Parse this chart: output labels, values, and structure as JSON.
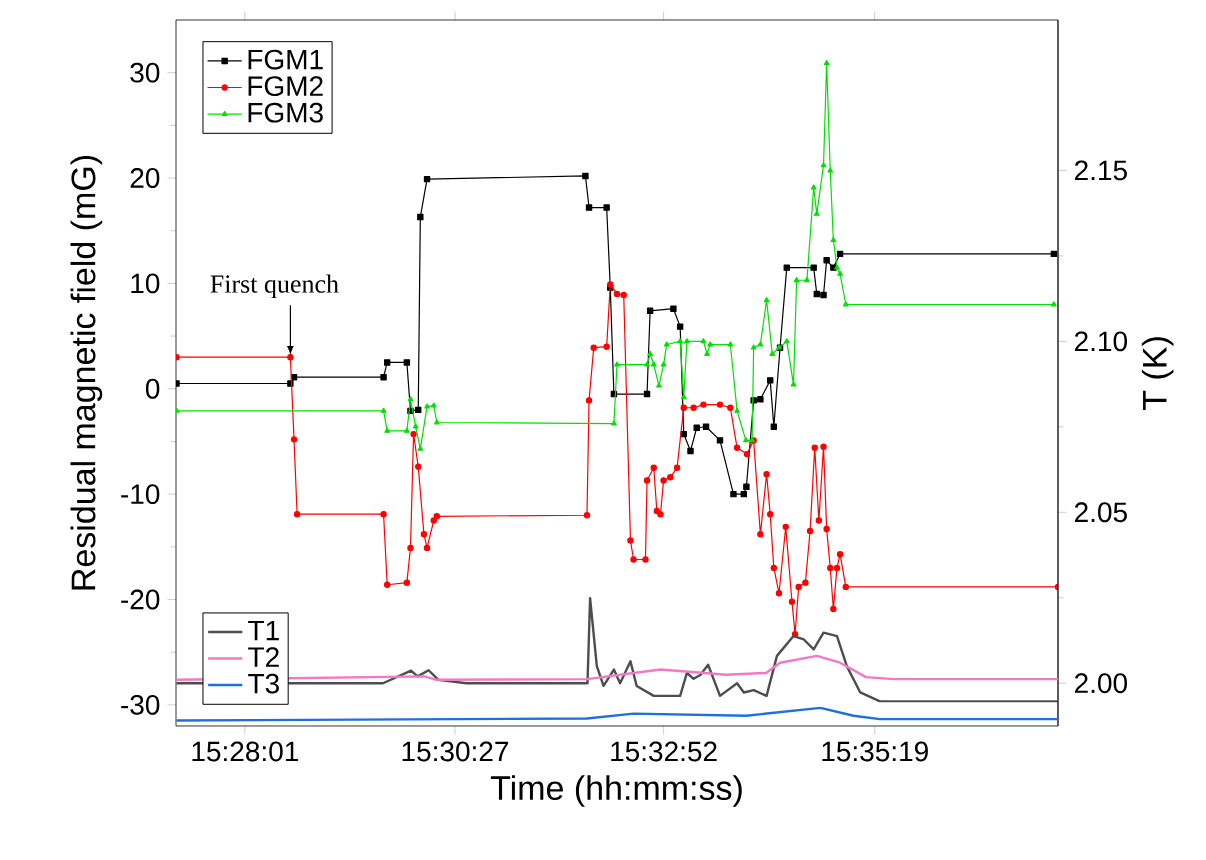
{
  "chart_data": {
    "type": "line",
    "xlabel": "Time (hh:mm:ss)",
    "ylabel": "Residual magnetic field (mG)",
    "y2label": "T (K)",
    "legend": "top left",
    "xlim": [
      15.4536,
      15.624
    ],
    "xticks": [
      {
        "value": 15.4669,
        "label": "15:28:01"
      },
      {
        "value": 15.5075,
        "label": "15:30:27"
      },
      {
        "value": 15.5478,
        "label": "15:32:52"
      },
      {
        "value": 15.5886,
        "label": "15:35:19"
      }
    ],
    "ylim": [
      -32,
      35
    ],
    "yticks": [
      -30,
      -20,
      -10,
      0,
      10,
      20,
      30
    ],
    "y2lim": [
      1.9875,
      2.194
    ],
    "y2ticks": [
      {
        "value": 2.0,
        "label": "2.00"
      },
      {
        "value": 2.05,
        "label": "2.05"
      },
      {
        "value": 2.1,
        "label": "2.10"
      },
      {
        "value": 2.15,
        "label": "2.15"
      }
    ],
    "annotations": [
      {
        "text": "First quench",
        "x": 15.4757,
        "y": 3.0
      }
    ],
    "series": [
      {
        "name": "FGM1",
        "color": "#000000",
        "marker": "square",
        "x": [
          15.4537,
          15.4757,
          15.4764,
          15.4937,
          15.4944,
          15.4982,
          15.4989,
          15.5004,
          15.5008,
          15.5021,
          15.5327,
          15.5334,
          15.5368,
          15.5375,
          15.5382,
          15.5446,
          15.5452,
          15.5497,
          15.551,
          15.5517,
          15.553,
          15.5542,
          15.556,
          15.5587,
          15.5613,
          15.5633,
          15.5638,
          15.5652,
          15.5665,
          15.5684,
          15.5691,
          15.5703,
          15.5716,
          15.5768,
          15.5774,
          15.5787,
          15.5793,
          15.5806,
          15.5819,
          15.6232
        ],
        "values": [
          0.5,
          0.5,
          1.1,
          1.1,
          2.5,
          2.5,
          -2.1,
          -2.0,
          16.3,
          19.9,
          20.2,
          17.2,
          17.2,
          9.6,
          -0.5,
          -0.5,
          7.4,
          7.6,
          5.9,
          -4.3,
          -5.9,
          -3.7,
          -3.6,
          -4.9,
          -10.0,
          -10.0,
          -9.3,
          -1.1,
          -1.0,
          0.8,
          -3.6,
          3.9,
          11.5,
          11.5,
          9.0,
          8.9,
          12.2,
          11.5,
          12.8,
          12.8
        ]
      },
      {
        "name": "FGM2",
        "color": "#ff0000",
        "marker": "circle",
        "x": [
          15.4537,
          15.4757,
          15.4764,
          15.477,
          15.4937,
          15.4944,
          15.4982,
          15.4989,
          15.4995,
          15.5004,
          15.5015,
          15.5021,
          15.5034,
          15.504,
          15.533,
          15.5334,
          15.5343,
          15.5368,
          15.5375,
          15.5388,
          15.5401,
          15.5414,
          15.542,
          15.5443,
          15.5446,
          15.5459,
          15.5465,
          15.5472,
          15.5478,
          15.5491,
          15.5504,
          15.5517,
          15.5536,
          15.5555,
          15.5587,
          15.5607,
          15.562,
          15.5639,
          15.5652,
          15.5665,
          15.5677,
          15.5684,
          15.5691,
          15.5701,
          15.5714,
          15.5726,
          15.5732,
          15.5739,
          15.5752,
          15.5761,
          15.577,
          15.5778,
          15.5787,
          15.5793,
          15.58,
          15.5806,
          15.5813,
          15.5819,
          15.583,
          15.624
        ],
        "values": [
          3.0,
          3.0,
          -4.8,
          -11.9,
          -11.9,
          -18.6,
          -18.4,
          -15.1,
          -4.3,
          -7.4,
          -13.8,
          -15.1,
          -12.5,
          -12.1,
          -12.0,
          -1.1,
          3.9,
          4.0,
          9.9,
          9.0,
          8.9,
          -14.4,
          -16.2,
          -16.2,
          -8.7,
          -7.5,
          -11.6,
          -11.9,
          -8.7,
          -8.4,
          -7.5,
          -1.8,
          -1.8,
          -1.5,
          -1.5,
          -1.8,
          -5.6,
          -6.2,
          -4.9,
          -13.8,
          -8.1,
          -11.9,
          -17.0,
          -19.4,
          -13.1,
          -20.2,
          -23.3,
          -18.8,
          -18.4,
          -13.5,
          -5.6,
          -12.5,
          -5.5,
          -13.3,
          -17.0,
          -20.9,
          -17.0,
          -15.7,
          -18.8,
          -18.8
        ]
      },
      {
        "name": "FGM3",
        "color": "#00e000",
        "marker": "triangle",
        "x": [
          15.4537,
          15.4937,
          15.4944,
          15.4982,
          15.4989,
          15.4999,
          15.5008,
          15.5021,
          15.5034,
          15.504,
          15.5382,
          15.5388,
          15.5446,
          15.5452,
          15.5459,
          15.5469,
          15.5478,
          15.5484,
          15.551,
          15.5517,
          15.5523,
          15.5555,
          15.5562,
          15.5568,
          15.5607,
          15.562,
          15.5637,
          15.5649,
          15.5652,
          15.5665,
          15.5677,
          15.5688,
          15.5701,
          15.5716,
          15.5729,
          15.5735,
          15.5755,
          15.5768,
          15.5774,
          15.5787,
          15.5793,
          15.58,
          15.5806,
          15.5813,
          15.5819,
          15.583,
          15.6232
        ],
        "values": [
          -2.1,
          -2.1,
          -4.0,
          -4.0,
          -1.0,
          -3.6,
          -5.7,
          -1.7,
          -1.6,
          -3.2,
          -3.3,
          2.3,
          2.3,
          3.3,
          2.3,
          0.3,
          2.3,
          4.2,
          4.5,
          -0.8,
          4.5,
          4.5,
          3.3,
          4.2,
          4.2,
          -2.1,
          -4.9,
          -4.9,
          3.9,
          4.2,
          8.4,
          3.3,
          3.9,
          4.5,
          0.4,
          10.3,
          10.3,
          19.1,
          16.6,
          21.2,
          30.9,
          20.7,
          14.1,
          11.5,
          10.9,
          8.0,
          8.0
        ]
      },
      {
        "name": "T1",
        "color": "#4d4d4d",
        "axis": "y2",
        "marker": "none",
        "x": [
          15.4537,
          15.4936,
          15.499,
          15.5003,
          15.5024,
          15.5043,
          15.5097,
          15.5331,
          15.5336,
          15.5349,
          15.5362,
          15.5382,
          15.5394,
          15.5414,
          15.5426,
          15.5459,
          15.551,
          15.5523,
          15.5536,
          15.5549,
          15.5564,
          15.5587,
          15.562,
          15.5633,
          15.5652,
          15.5677,
          15.5697,
          15.5729,
          15.5749,
          15.5768,
          15.5787,
          15.5813,
          15.5832,
          15.5858,
          15.5896,
          15.624
        ],
        "values": [
          2.0,
          2.0,
          2.0037,
          2.002,
          2.0038,
          2.001,
          2.0,
          2.0,
          2.0249,
          2.005,
          1.9992,
          2.004,
          2.0,
          2.0064,
          1.9992,
          1.9963,
          1.9963,
          2.003,
          2.0013,
          2.0024,
          2.0054,
          1.9963,
          2.0,
          1.9973,
          1.998,
          1.9963,
          2.008,
          2.0138,
          2.0128,
          2.0099,
          2.0148,
          2.0138,
          2.005,
          1.9973,
          1.9947,
          1.9947
        ]
      },
      {
        "name": "T2",
        "color": "#f27ac4",
        "axis": "y2",
        "marker": "none",
        "x": [
          15.4537,
          15.5016,
          15.5039,
          15.533,
          15.5472,
          15.5599,
          15.5676,
          15.5703,
          15.5774,
          15.5819,
          15.5869,
          15.5922,
          15.624
        ],
        "values": [
          2.001,
          2.002,
          2.001,
          2.0012,
          2.004,
          2.0025,
          2.003,
          2.006,
          2.008,
          2.006,
          2.0018,
          2.0012,
          2.0012
        ]
      },
      {
        "name": "T3",
        "color": "#1f6fdc",
        "axis": "y2",
        "marker": "none",
        "x": [
          15.4537,
          15.533,
          15.542,
          15.5638,
          15.5781,
          15.5845,
          15.5896,
          15.624
        ],
        "values": [
          1.9891,
          1.9897,
          1.9911,
          1.9905,
          1.9928,
          1.9905,
          1.9895,
          1.9895
        ]
      }
    ]
  }
}
